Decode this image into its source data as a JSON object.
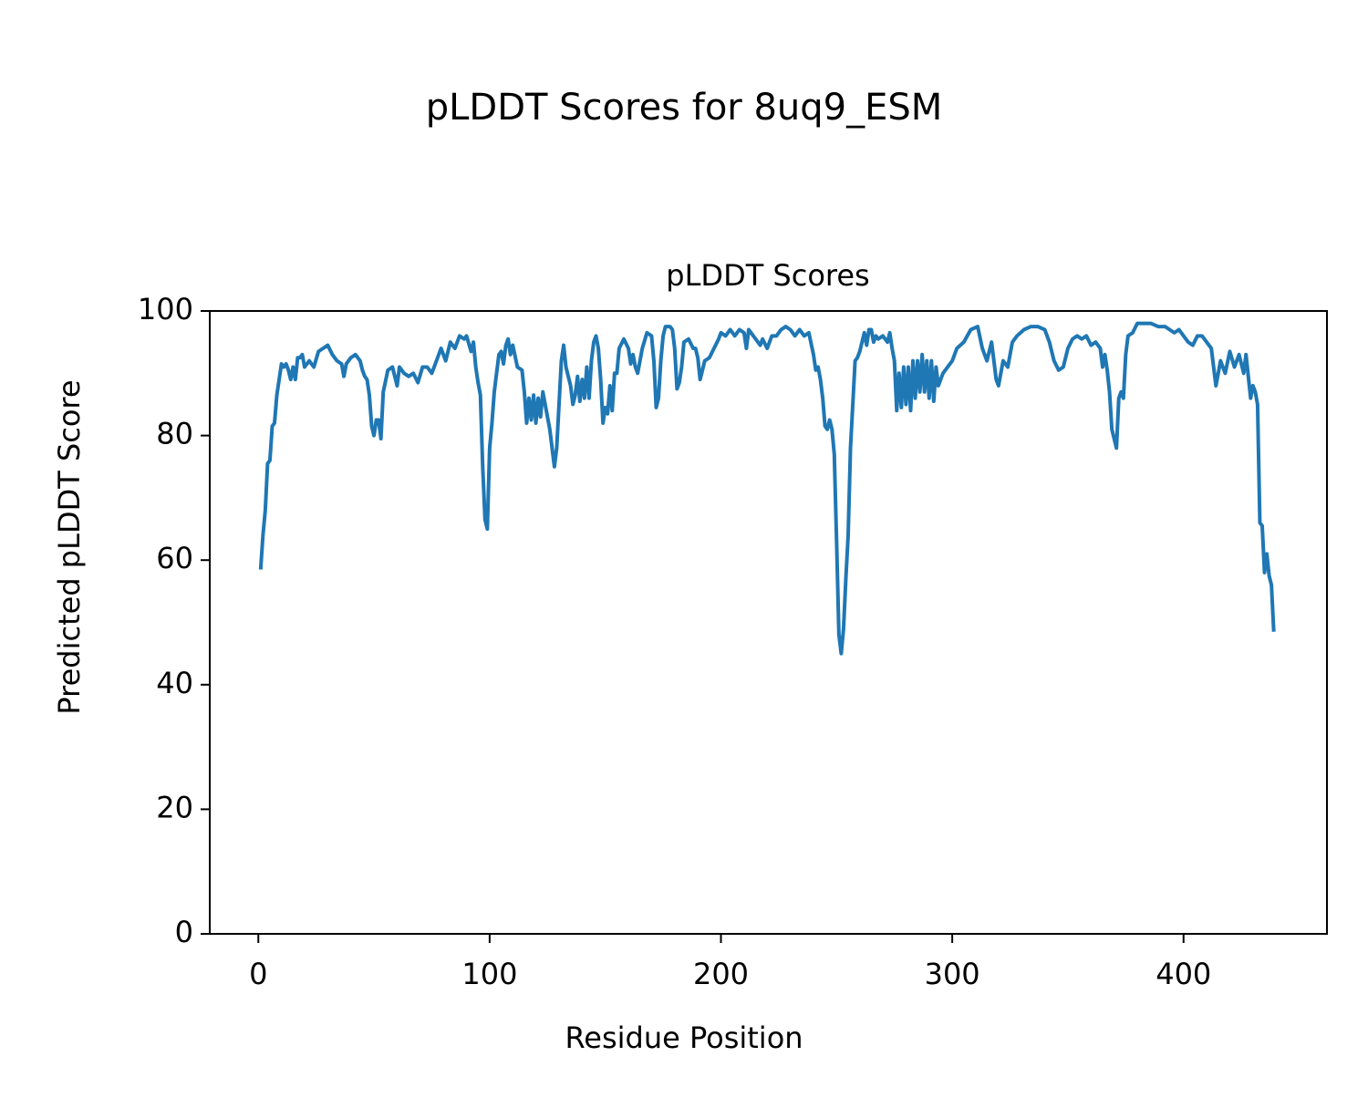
{
  "chart_data": {
    "type": "line",
    "title": "pLDDT Scores for 8uq9_ESM",
    "subtitle": "pLDDT Scores",
    "x_label": "Residue Position",
    "y_label": "Predicted pLDDT Score",
    "xlim": [
      -21,
      462
    ],
    "ylim": [
      0,
      100
    ],
    "xticks": [
      0,
      100,
      200,
      300,
      400
    ],
    "yticks": [
      0,
      20,
      40,
      60,
      80,
      100
    ],
    "grid": false,
    "series": [
      {
        "color": "#1f77b4",
        "x": [
          1,
          2,
          3,
          4,
          5,
          6,
          7,
          8,
          9,
          10,
          11,
          12,
          13,
          14,
          15,
          16,
          17,
          18,
          19,
          20,
          22,
          24,
          26,
          28,
          30,
          32,
          34,
          36,
          37,
          38,
          40,
          42,
          44,
          45,
          46,
          47,
          48,
          49,
          50,
          51,
          52,
          53,
          54,
          56,
          58,
          60,
          61,
          63,
          65,
          67,
          69,
          71,
          73,
          75,
          77,
          79,
          81,
          83,
          85,
          87,
          89,
          90,
          92,
          93,
          94,
          95,
          96,
          97,
          98,
          99,
          100,
          101,
          102,
          104,
          105,
          106,
          107,
          108,
          109,
          110,
          112,
          114,
          115,
          116,
          117,
          118,
          119,
          120,
          121,
          122,
          123,
          125,
          126,
          128,
          129,
          130,
          131,
          132,
          133,
          135,
          136,
          137,
          138,
          139,
          140,
          141,
          142,
          143,
          144,
          145,
          146,
          147,
          148,
          149,
          150,
          151,
          152,
          153,
          154,
          155,
          156,
          158,
          160,
          161,
          162,
          163,
          164,
          166,
          168,
          170,
          171,
          172,
          173,
          174,
          175,
          176,
          178,
          179,
          180,
          181,
          182,
          183,
          184,
          186,
          188,
          189,
          190,
          191,
          192,
          193,
          195,
          197,
          199,
          200,
          202,
          204,
          206,
          208,
          210,
          211,
          212,
          214,
          216,
          217,
          218,
          220,
          222,
          224,
          226,
          228,
          230,
          232,
          234,
          236,
          238,
          240,
          241,
          242,
          243,
          244,
          245,
          246,
          247,
          248,
          249,
          250,
          251,
          252,
          253,
          254,
          255,
          256,
          257,
          258,
          259,
          260,
          261,
          262,
          263,
          264,
          265,
          266,
          267,
          268,
          270,
          272,
          273,
          274,
          275,
          276,
          277,
          278,
          279,
          280,
          281,
          282,
          283,
          284,
          285,
          286,
          287,
          288,
          289,
          290,
          291,
          292,
          293,
          294,
          296,
          298,
          300,
          302,
          305,
          308,
          311,
          313,
          315,
          317,
          319,
          320,
          322,
          324,
          326,
          328,
          331,
          334,
          337,
          340,
          342,
          344,
          346,
          348,
          350,
          352,
          354,
          356,
          358,
          360,
          362,
          364,
          365,
          366,
          367,
          368,
          369,
          370,
          371,
          372,
          373,
          374,
          375,
          376,
          378,
          380,
          383,
          386,
          389,
          392,
          394,
          396,
          398,
          400,
          402,
          404,
          406,
          408,
          410,
          412,
          414,
          416,
          418,
          420,
          422,
          424,
          426,
          427,
          429,
          430,
          431,
          432,
          433,
          434,
          435,
          436,
          437,
          438,
          439
        ],
        "values": [
          58.5,
          64,
          68,
          75.5,
          76,
          81.5,
          82,
          86.5,
          89,
          91.5,
          91,
          91.5,
          90.5,
          89,
          91,
          89,
          92.5,
          92.5,
          93,
          91,
          92,
          91,
          93.5,
          94,
          94.5,
          93,
          92,
          91.5,
          89.5,
          91.5,
          92.5,
          93,
          92,
          90.5,
          89.5,
          89,
          86.5,
          81.5,
          80,
          82.5,
          82.5,
          79.5,
          87,
          90.5,
          91,
          88,
          91,
          90,
          89.5,
          90,
          88.5,
          91,
          91,
          90,
          92,
          94,
          92,
          95,
          94,
          96,
          95.5,
          96,
          93.5,
          95,
          91,
          88.5,
          86.5,
          75,
          66.5,
          65,
          78,
          82,
          87,
          93,
          93.5,
          91.5,
          94.5,
          95.5,
          93,
          94.5,
          91,
          90.5,
          87,
          82,
          86,
          82.5,
          86.5,
          82,
          86,
          83,
          87,
          83,
          81,
          75,
          78,
          85,
          92,
          94.5,
          91,
          88,
          85,
          86.5,
          89.5,
          85.5,
          89,
          86,
          91,
          86,
          92,
          95,
          96,
          94,
          89,
          82,
          84.5,
          83.5,
          88,
          84,
          90,
          90,
          94,
          95.5,
          94,
          91.5,
          93,
          91,
          90,
          94,
          96.5,
          96,
          92,
          84.5,
          86,
          92,
          96,
          97.5,
          97.5,
          97,
          94,
          87.5,
          88.5,
          91,
          95,
          95.5,
          94,
          94,
          92.5,
          89,
          90.5,
          92,
          92.5,
          94,
          95.5,
          96.5,
          96,
          97,
          96,
          97,
          96.5,
          94,
          97,
          96,
          95,
          94.5,
          95.5,
          94,
          96,
          96,
          97,
          97.5,
          97,
          96,
          97,
          96,
          96.5,
          93,
          90.5,
          91,
          89,
          86,
          81.5,
          81,
          82.5,
          81,
          77,
          63,
          48,
          45,
          49,
          57,
          64,
          78,
          85,
          92,
          92.5,
          93.5,
          95,
          96.5,
          94.5,
          97,
          97,
          95,
          96,
          95.5,
          96,
          95,
          96.5,
          94,
          92,
          84,
          90,
          84.5,
          91,
          85,
          91,
          84,
          92,
          86,
          92,
          87,
          93,
          87,
          92,
          86,
          92,
          85.5,
          91,
          88,
          90,
          91,
          92,
          94,
          95,
          97,
          97.5,
          94,
          92,
          95,
          89,
          88,
          92,
          91,
          95,
          96,
          97,
          97.5,
          97.5,
          97,
          95,
          92,
          90.5,
          91,
          94,
          95.5,
          96,
          95.5,
          96,
          94.5,
          95,
          94,
          91,
          93,
          90.5,
          87,
          81,
          79.5,
          78,
          86,
          87,
          86,
          93,
          96,
          96.5,
          98,
          98,
          98,
          97.5,
          97.5,
          97,
          96.5,
          97,
          96,
          95,
          94.5,
          96,
          96,
          95,
          94,
          88,
          92,
          90,
          93.5,
          91,
          93,
          90,
          93,
          86,
          88,
          87,
          85,
          66,
          65.5,
          58,
          61,
          57.5,
          56,
          48.5
        ]
      }
    ]
  }
}
